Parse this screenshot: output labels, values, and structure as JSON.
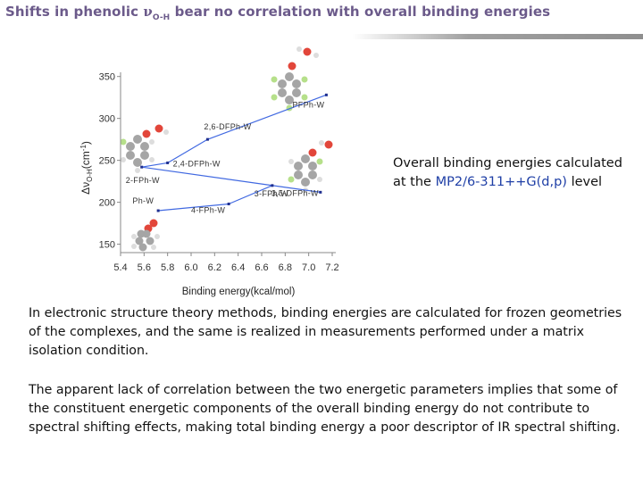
{
  "slide": {
    "title_prefix": "Shifts in phenolic ",
    "title_nu": "ν",
    "title_sub": "O-H",
    "title_suffix": " bear no correlation with overall binding energies",
    "side_note": {
      "line1": "Overall binding energies calculated",
      "line2_prefix": "at the ",
      "method": "MP2/6-311++G(d,p)",
      "line2_suffix": " level"
    },
    "paragraph1": "In electronic structure theory methods, binding energies are calculated for frozen geometries of the complexes, and the same is realized in measurements performed under a matrix isolation condition.",
    "paragraph2": "The apparent lack of correlation between the two energetic parameters implies that some of the constituent energetic components of the overall binding energy do not contribute to spectral shifting effects, making total binding energy a poor descriptor of IR spectral shifting."
  },
  "colors": {
    "title": "#6b5a8a",
    "series_line": "#4169e1",
    "point": "#1f2f8f",
    "axis": "#888888",
    "highlight": "#1f3fa6"
  },
  "chart_data": {
    "type": "line",
    "xlabel": "Binding energy(kcal/mol)",
    "ylabel_prefix": "Δν",
    "ylabel_sub": "O-H",
    "ylabel_suffix": "(cm",
    "ylabel_sup": "-1",
    "ylabel_close": ")",
    "xlim": [
      5.4,
      7.2
    ],
    "ylim": [
      140,
      355
    ],
    "x_ticks": [
      "5.4",
      "5.6",
      "5.8",
      "6.0",
      "6.2",
      "6.4",
      "6.6",
      "6.8",
      "7.0",
      "7.2"
    ],
    "y_ticks": [
      "150",
      "200",
      "250",
      "300",
      "350"
    ],
    "grid": false,
    "points": [
      {
        "label": "Ph-W",
        "x": 5.72,
        "y": 190
      },
      {
        "label": "2-FPh-W",
        "x": 5.58,
        "y": 242
      },
      {
        "label": "2,4-DFPh-W",
        "x": 5.8,
        "y": 247
      },
      {
        "label": "2,6-DFPh-W",
        "x": 6.14,
        "y": 275
      },
      {
        "label": "4-FPh-W",
        "x": 6.32,
        "y": 198
      },
      {
        "label": "3-FPh-W",
        "x": 6.69,
        "y": 220
      },
      {
        "label": "3,5-DFPh-W",
        "x": 7.1,
        "y": 212
      },
      {
        "label": "PFPh-W",
        "x": 7.15,
        "y": 328
      }
    ],
    "connections": [
      [
        1,
        2
      ],
      [
        2,
        3
      ],
      [
        1,
        6
      ],
      [
        0,
        4
      ],
      [
        4,
        5
      ],
      [
        3,
        7
      ]
    ]
  }
}
